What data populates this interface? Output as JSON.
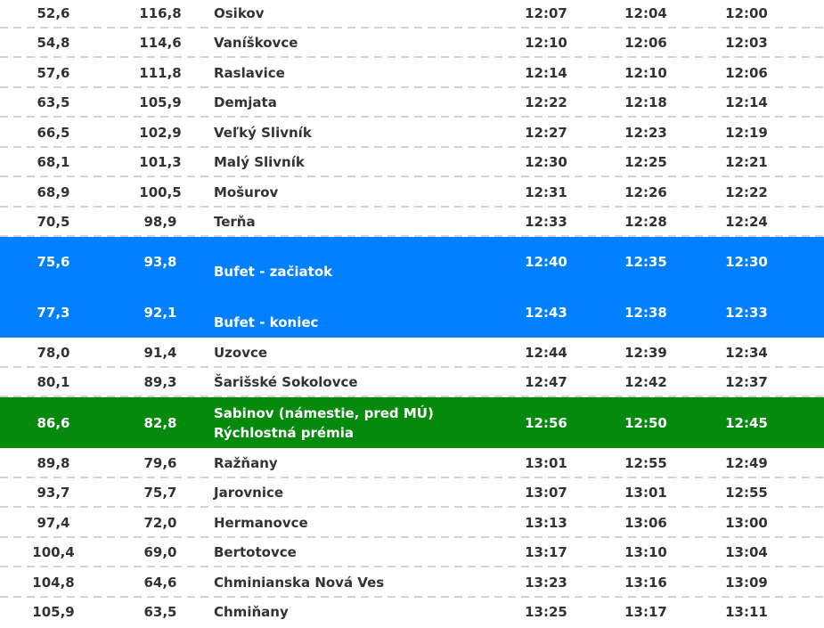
{
  "colors": {
    "text": "#333333",
    "buffet_bg": "#0080ff",
    "premium_bg": "#068a0e",
    "highlight_text": "#ffffff",
    "separator": "#d0d4da"
  },
  "rows_top": [
    {
      "km_from": "52,6",
      "km_to": "116,8",
      "name": "Osikov",
      "t1": "12:07",
      "t2": "12:04",
      "t3": "12:00"
    },
    {
      "km_from": "54,8",
      "km_to": "114,6",
      "name": "Vaníškovce",
      "t1": "12:10",
      "t2": "12:06",
      "t3": "12:03"
    },
    {
      "km_from": "57,6",
      "km_to": "111,8",
      "name": "Raslavice",
      "t1": "12:14",
      "t2": "12:10",
      "t3": "12:06"
    },
    {
      "km_from": "63,5",
      "km_to": "105,9",
      "name": "Demjata",
      "t1": "12:22",
      "t2": "12:18",
      "t3": "12:14"
    },
    {
      "km_from": "66,5",
      "km_to": "102,9",
      "name": "Veľký Slivník",
      "t1": "12:27",
      "t2": "12:23",
      "t3": "12:19"
    },
    {
      "km_from": "68,1",
      "km_to": "101,3",
      "name": "Malý Slivník",
      "t1": "12:30",
      "t2": "12:25",
      "t3": "12:21"
    },
    {
      "km_from": "68,9",
      "km_to": "100,5",
      "name": "Mošurov",
      "t1": "12:31",
      "t2": "12:26",
      "t3": "12:22"
    },
    {
      "km_from": "70,5",
      "km_to": "98,9",
      "name": "Terňa",
      "t1": "12:33",
      "t2": "12:28",
      "t3": "12:24"
    }
  ],
  "buffet": [
    {
      "km_from": "75,6",
      "km_to": "93,8",
      "name": "Bufet - začiatok",
      "t1": "12:40",
      "t2": "12:35",
      "t3": "12:30"
    },
    {
      "km_from": "77,3",
      "km_to": "92,1",
      "name": "Bufet - koniec",
      "t1": "12:43",
      "t2": "12:38",
      "t3": "12:33"
    }
  ],
  "rows_mid": [
    {
      "km_from": "78,0",
      "km_to": "91,4",
      "name": "Uzovce",
      "t1": "12:44",
      "t2": "12:39",
      "t3": "12:34"
    },
    {
      "km_from": "80,1",
      "km_to": "89,3",
      "name": "Šarišské Sokolovce",
      "t1": "12:47",
      "t2": "12:42",
      "t3": "12:37"
    }
  ],
  "premium": {
    "km_from": "86,6",
    "km_to": "82,8",
    "name": "Sabinov (námestie, pred MÚ)",
    "note": "Rýchlostná prémia",
    "t1": "12:56",
    "t2": "12:50",
    "t3": "12:45"
  },
  "rows_bottom": [
    {
      "km_from": "89,8",
      "km_to": "79,6",
      "name": "Ražňany",
      "t1": "13:01",
      "t2": "12:55",
      "t3": "12:49"
    },
    {
      "km_from": "93,7",
      "km_to": "75,7",
      "name": "Jarovnice",
      "t1": "13:07",
      "t2": "13:01",
      "t3": "12:55"
    },
    {
      "km_from": "97,4",
      "km_to": "72,0",
      "name": "Hermanovce",
      "t1": "13:13",
      "t2": "13:06",
      "t3": "13:00"
    },
    {
      "km_from": "100,4",
      "km_to": "69,0",
      "name": "Bertotovce",
      "t1": "13:17",
      "t2": "13:10",
      "t3": "13:04"
    },
    {
      "km_from": "104,8",
      "km_to": "64,6",
      "name": "Chminianska Nová Ves",
      "t1": "13:23",
      "t2": "13:16",
      "t3": "13:09"
    },
    {
      "km_from": "105,9",
      "km_to": "63,5",
      "name": "Chmiňany",
      "t1": "13:25",
      "t2": "13:17",
      "t3": "13:11"
    }
  ]
}
